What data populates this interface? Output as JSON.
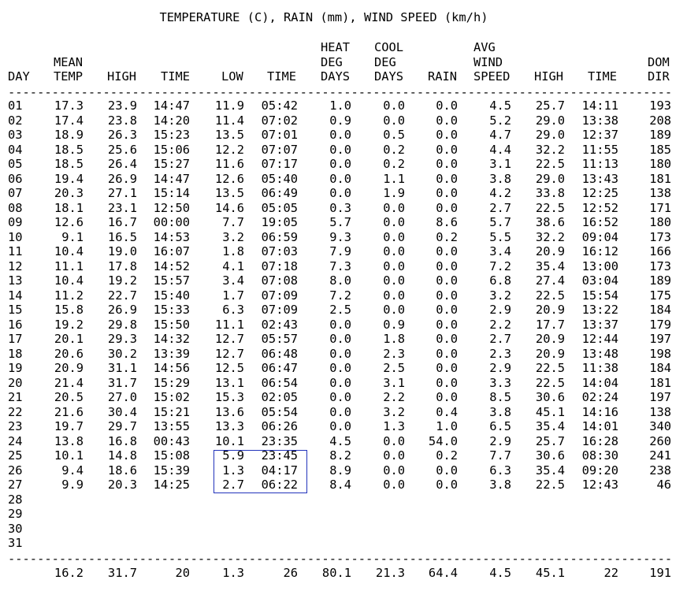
{
  "title": "TEMPERATURE (C), RAIN (mm), WIND SPEED (km/h)",
  "separator": "----------------------------------------------------------------------------------------------------------------------------",
  "columns": [
    {
      "key": "day",
      "lines": [
        "DAY"
      ],
      "align": "left"
    },
    {
      "key": "mean",
      "lines": [
        "MEAN",
        "TEMP"
      ],
      "align": "left"
    },
    {
      "key": "high",
      "lines": [
        "HIGH"
      ],
      "align": "left"
    },
    {
      "key": "time_high",
      "lines": [
        "TIME"
      ],
      "align": "left"
    },
    {
      "key": "low",
      "lines": [
        "LOW"
      ],
      "align": "left"
    },
    {
      "key": "time_low",
      "lines": [
        "TIME"
      ],
      "align": "left"
    },
    {
      "key": "heat",
      "lines": [
        "HEAT",
        "DEG",
        "DAYS"
      ],
      "align": "left"
    },
    {
      "key": "cool",
      "lines": [
        "COOL",
        "DEG",
        "DAYS"
      ],
      "align": "left"
    },
    {
      "key": "rain",
      "lines": [
        "RAIN"
      ],
      "align": "left"
    },
    {
      "key": "avg_wind",
      "lines": [
        "AVG",
        "WIND",
        "SPEED"
      ],
      "align": "left"
    },
    {
      "key": "wind_high",
      "lines": [
        "HIGH"
      ],
      "align": "left"
    },
    {
      "key": "wind_time",
      "lines": [
        "TIME"
      ],
      "align": "left"
    },
    {
      "key": "dom_dir",
      "lines": [
        "DOM",
        "DIR"
      ],
      "align": "right"
    }
  ],
  "rows": [
    [
      "01",
      "17.3",
      "23.9",
      "14:47",
      "11.9",
      "05:42",
      "1.0",
      "0.0",
      "0.0",
      "4.5",
      "25.7",
      "14:11",
      "193"
    ],
    [
      "02",
      "17.4",
      "23.8",
      "14:20",
      "11.4",
      "07:02",
      "0.9",
      "0.0",
      "0.0",
      "5.2",
      "29.0",
      "13:38",
      "208"
    ],
    [
      "03",
      "18.9",
      "26.3",
      "15:23",
      "13.5",
      "07:01",
      "0.0",
      "0.5",
      "0.0",
      "4.7",
      "29.0",
      "12:37",
      "189"
    ],
    [
      "04",
      "18.5",
      "25.6",
      "15:06",
      "12.2",
      "07:07",
      "0.0",
      "0.2",
      "0.0",
      "4.4",
      "32.2",
      "11:55",
      "185"
    ],
    [
      "05",
      "18.5",
      "26.4",
      "15:27",
      "11.6",
      "07:17",
      "0.0",
      "0.2",
      "0.0",
      "3.1",
      "22.5",
      "11:13",
      "180"
    ],
    [
      "06",
      "19.4",
      "26.9",
      "14:47",
      "12.6",
      "05:40",
      "0.0",
      "1.1",
      "0.0",
      "3.8",
      "29.0",
      "13:43",
      "181"
    ],
    [
      "07",
      "20.3",
      "27.1",
      "15:14",
      "13.5",
      "06:49",
      "0.0",
      "1.9",
      "0.0",
      "4.2",
      "33.8",
      "12:25",
      "138"
    ],
    [
      "08",
      "18.1",
      "23.1",
      "12:50",
      "14.6",
      "05:05",
      "0.3",
      "0.0",
      "0.0",
      "2.7",
      "22.5",
      "12:52",
      "171"
    ],
    [
      "09",
      "12.6",
      "16.7",
      "00:00",
      "7.7",
      "19:05",
      "5.7",
      "0.0",
      "8.6",
      "5.7",
      "38.6",
      "16:52",
      "180"
    ],
    [
      "10",
      "9.1",
      "16.5",
      "14:53",
      "3.2",
      "06:59",
      "9.3",
      "0.0",
      "0.2",
      "5.5",
      "32.2",
      "09:04",
      "173"
    ],
    [
      "11",
      "10.4",
      "19.0",
      "16:07",
      "1.8",
      "07:03",
      "7.9",
      "0.0",
      "0.0",
      "3.4",
      "20.9",
      "16:12",
      "166"
    ],
    [
      "12",
      "11.1",
      "17.8",
      "14:52",
      "4.1",
      "07:18",
      "7.3",
      "0.0",
      "0.0",
      "7.2",
      "35.4",
      "13:00",
      "173"
    ],
    [
      "13",
      "10.4",
      "19.2",
      "15:57",
      "3.4",
      "07:08",
      "8.0",
      "0.0",
      "0.0",
      "6.8",
      "27.4",
      "03:04",
      "189"
    ],
    [
      "14",
      "11.2",
      "22.7",
      "15:40",
      "1.7",
      "07:09",
      "7.2",
      "0.0",
      "0.0",
      "3.2",
      "22.5",
      "15:54",
      "175"
    ],
    [
      "15",
      "15.8",
      "26.9",
      "15:33",
      "6.3",
      "07:09",
      "2.5",
      "0.0",
      "0.0",
      "2.9",
      "20.9",
      "13:22",
      "184"
    ],
    [
      "16",
      "19.2",
      "29.8",
      "15:50",
      "11.1",
      "02:43",
      "0.0",
      "0.9",
      "0.0",
      "2.2",
      "17.7",
      "13:37",
      "179"
    ],
    [
      "17",
      "20.1",
      "29.3",
      "14:32",
      "12.7",
      "05:57",
      "0.0",
      "1.8",
      "0.0",
      "2.7",
      "20.9",
      "12:44",
      "197"
    ],
    [
      "18",
      "20.6",
      "30.2",
      "13:39",
      "12.7",
      "06:48",
      "0.0",
      "2.3",
      "0.0",
      "2.3",
      "20.9",
      "13:48",
      "198"
    ],
    [
      "19",
      "20.9",
      "31.1",
      "14:56",
      "12.5",
      "06:47",
      "0.0",
      "2.5",
      "0.0",
      "2.9",
      "22.5",
      "11:38",
      "184"
    ],
    [
      "20",
      "21.4",
      "31.7",
      "15:29",
      "13.1",
      "06:54",
      "0.0",
      "3.1",
      "0.0",
      "3.3",
      "22.5",
      "14:04",
      "181"
    ],
    [
      "21",
      "20.5",
      "27.0",
      "15:02",
      "15.3",
      "02:05",
      "0.0",
      "2.2",
      "0.0",
      "8.5",
      "30.6",
      "02:24",
      "197"
    ],
    [
      "22",
      "21.6",
      "30.4",
      "15:21",
      "13.6",
      "05:54",
      "0.0",
      "3.2",
      "0.4",
      "3.8",
      "45.1",
      "14:16",
      "138"
    ],
    [
      "23",
      "19.7",
      "29.7",
      "13:55",
      "13.3",
      "06:26",
      "0.0",
      "1.3",
      "1.0",
      "6.5",
      "35.4",
      "14:01",
      "340"
    ],
    [
      "24",
      "13.8",
      "16.8",
      "00:43",
      "10.1",
      "23:35",
      "4.5",
      "0.0",
      "54.0",
      "2.9",
      "25.7",
      "16:28",
      "260"
    ],
    [
      "25",
      "10.1",
      "14.8",
      "15:08",
      "5.9",
      "23:45",
      "8.2",
      "0.0",
      "0.2",
      "7.7",
      "30.6",
      "08:30",
      "241"
    ],
    [
      "26",
      "9.4",
      "18.6",
      "15:39",
      "1.3",
      "04:17",
      "8.9",
      "0.0",
      "0.0",
      "6.3",
      "35.4",
      "09:20",
      "238"
    ],
    [
      "27",
      "9.9",
      "20.3",
      "14:25",
      "2.7",
      "06:22",
      "8.4",
      "0.0",
      "0.0",
      "3.8",
      "22.5",
      "12:43",
      "46"
    ],
    [
      "28",
      "",
      "",
      "",
      "",
      "",
      "",
      "",
      "",
      "",
      "",
      "",
      ""
    ],
    [
      "29",
      "",
      "",
      "",
      "",
      "",
      "",
      "",
      "",
      "",
      "",
      "",
      ""
    ],
    [
      "30",
      "",
      "",
      "",
      "",
      "",
      "",
      "",
      "",
      "",
      "",
      "",
      ""
    ],
    [
      "31",
      "",
      "",
      "",
      "",
      "",
      "",
      "",
      "",
      "",
      "",
      "",
      ""
    ]
  ],
  "totals": [
    "",
    "16.2",
    "31.7",
    "20",
    "1.3",
    "26",
    "80.1",
    "21.3",
    "64.4",
    "4.5",
    "45.1",
    "22",
    "191"
  ],
  "highlight_color": "#2233bb"
}
